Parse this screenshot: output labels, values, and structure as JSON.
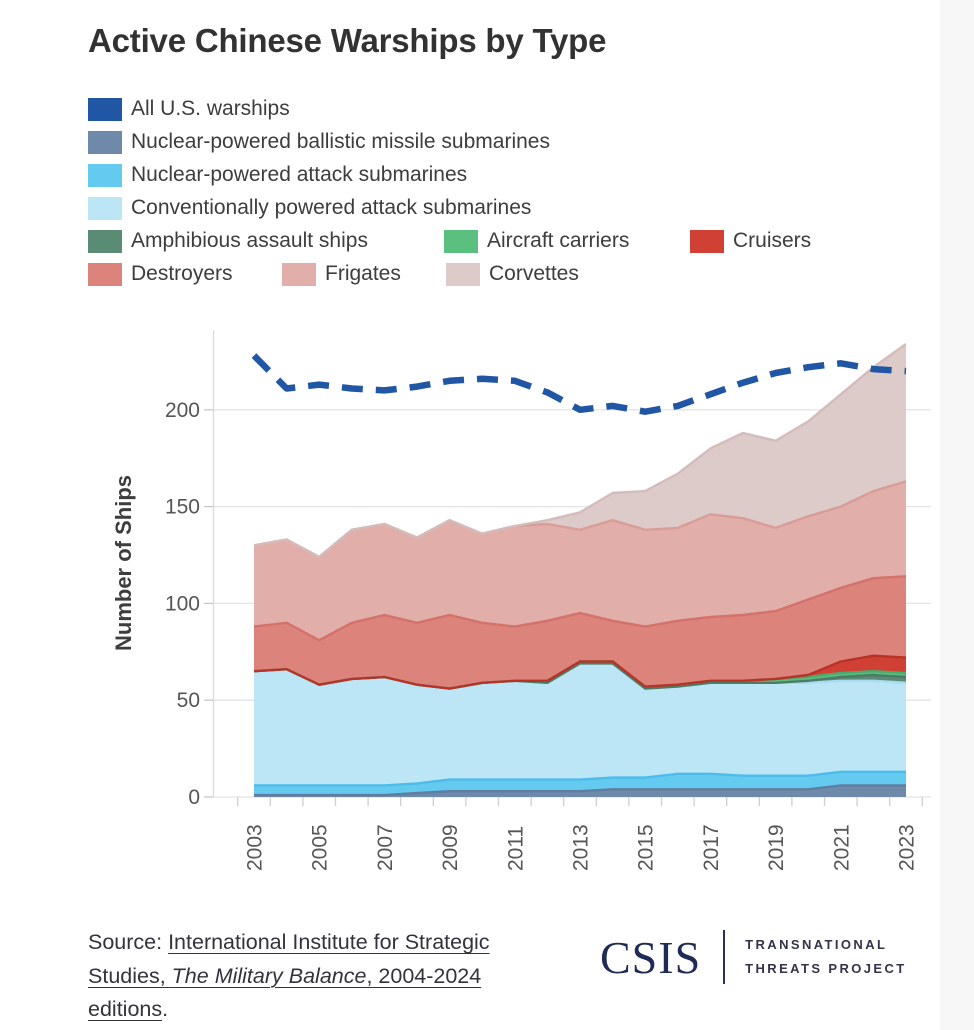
{
  "page": {
    "title": "Active Chinese Warships by Type"
  },
  "legend": {
    "items": [
      {
        "id": "us",
        "label": "All U.S. warships",
        "color": "#2156a4"
      },
      {
        "id": "ssbn",
        "label": "Nuclear-powered ballistic missile submarines",
        "color": "#6e89aa"
      },
      {
        "id": "ssn",
        "label": "Nuclear-powered attack submarines",
        "color": "#64caf0"
      },
      {
        "id": "ssk",
        "label": "Conventionally powered attack submarines",
        "color": "#bce5f6"
      },
      {
        "id": "amphibious",
        "label": "Amphibious assault ships",
        "color": "#5a8b74"
      },
      {
        "id": "carriers",
        "label": "Aircraft carriers",
        "color": "#5bbf80"
      },
      {
        "id": "cruisers",
        "label": "Cruisers",
        "color": "#d04035"
      },
      {
        "id": "destroyers",
        "label": "Destroyers",
        "color": "#dc837c"
      },
      {
        "id": "frigates",
        "label": "Frigates",
        "color": "#e2aeaa"
      },
      {
        "id": "corvettes",
        "label": "Corvettes",
        "color": "#ddcbca"
      }
    ]
  },
  "chart_data": {
    "type": "area",
    "title": "Active Chinese Warships by Type",
    "xlabel": "",
    "ylabel": "Number of Ships",
    "x": [
      2003,
      2004,
      2005,
      2006,
      2007,
      2008,
      2009,
      2010,
      2011,
      2012,
      2013,
      2014,
      2015,
      2016,
      2017,
      2018,
      2019,
      2020,
      2021,
      2022,
      2023
    ],
    "x_labeled": [
      2003,
      2005,
      2007,
      2009,
      2011,
      2013,
      2015,
      2017,
      2019,
      2021,
      2023
    ],
    "yticks": [
      0,
      50,
      100,
      150,
      200
    ],
    "ylim": [
      0,
      240
    ],
    "grid": true,
    "legend_position": "top",
    "stacked": true,
    "series": [
      {
        "name": "Nuclear-powered ballistic missile submarines",
        "color": "#6e89aa",
        "stroke": "#5f7d9f",
        "values": [
          1,
          1,
          1,
          1,
          1,
          2,
          3,
          3,
          3,
          3,
          3,
          4,
          4,
          4,
          4,
          4,
          4,
          4,
          6,
          6,
          6
        ]
      },
      {
        "name": "Nuclear-powered attack submarines",
        "color": "#64caf0",
        "stroke": "#4cbcea",
        "values": [
          5,
          5,
          5,
          5,
          5,
          5,
          6,
          6,
          6,
          6,
          6,
          6,
          6,
          8,
          8,
          7,
          7,
          7,
          7,
          7,
          7
        ]
      },
      {
        "name": "Conventionally powered attack submarines",
        "color": "#bce5f6",
        "stroke": "#a9dcf2",
        "values": [
          59,
          60,
          52,
          55,
          56,
          51,
          47,
          50,
          51,
          50,
          60,
          59,
          46,
          45,
          47,
          48,
          48,
          48,
          47,
          47,
          46
        ]
      },
      {
        "name": "Amphibious assault ships",
        "color": "#5a8b74",
        "stroke": "#4b7c64",
        "values": [
          0,
          0,
          0,
          0,
          0,
          0,
          0,
          0,
          0,
          0,
          0,
          0,
          0,
          0,
          0,
          0,
          0,
          1,
          2,
          3,
          3
        ]
      },
      {
        "name": "Aircraft carriers",
        "color": "#5bbf80",
        "stroke": "#48ad6d",
        "values": [
          0,
          0,
          0,
          0,
          0,
          0,
          0,
          0,
          0,
          1,
          1,
          1,
          1,
          1,
          1,
          1,
          2,
          2,
          2,
          2,
          2
        ]
      },
      {
        "name": "Cruisers",
        "color": "#d04035",
        "stroke": "#b93227",
        "values": [
          0,
          0,
          0,
          0,
          0,
          0,
          0,
          0,
          0,
          0,
          0,
          0,
          0,
          0,
          0,
          0,
          0,
          1,
          6,
          8,
          8
        ]
      },
      {
        "name": "Destroyers",
        "color": "#dc837c",
        "stroke": "#d3726a",
        "values": [
          23,
          24,
          23,
          29,
          32,
          32,
          38,
          31,
          28,
          31,
          25,
          21,
          31,
          33,
          33,
          34,
          35,
          39,
          38,
          40,
          42
        ]
      },
      {
        "name": "Frigates",
        "color": "#e2aeaa",
        "stroke": "#d99d98",
        "values": [
          42,
          43,
          43,
          48,
          47,
          44,
          49,
          46,
          52,
          50,
          43,
          52,
          50,
          48,
          53,
          50,
          43,
          43,
          42,
          45,
          49
        ]
      },
      {
        "name": "Corvettes",
        "color": "#ddcbca",
        "stroke": "#d3bcbb",
        "values": [
          0,
          0,
          0,
          0,
          0,
          0,
          0,
          0,
          0,
          2,
          9,
          14,
          20,
          28,
          34,
          44,
          45,
          49,
          58,
          64,
          71
        ]
      }
    ],
    "line_series": {
      "name": "All U.S. warships",
      "color": "#2156a4",
      "style": "dashed",
      "values": [
        228,
        211,
        213,
        211,
        210,
        212,
        215,
        216,
        215,
        209,
        200,
        202,
        199,
        202,
        208,
        214,
        219,
        222,
        224,
        221,
        220
      ]
    }
  },
  "footer": {
    "line1_prefix": "Source: ",
    "line1_link": "International Institute for Strategic",
    "line2_link1": "Studies, ",
    "line2_italic": "The Military Balance",
    "line2_link2": ", 2004-2024",
    "line3_link": "editions",
    "line3_suffix": "."
  },
  "logo": {
    "name": "CSIS",
    "subtitle_line1": "TRANSNATIONAL",
    "subtitle_line2": "THREATS PROJECT"
  }
}
